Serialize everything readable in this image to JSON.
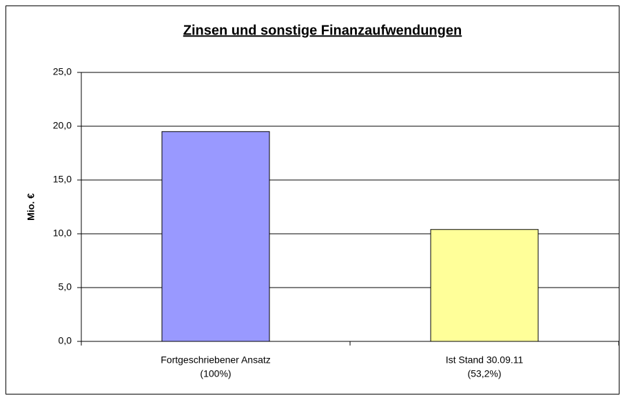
{
  "chart_data": {
    "type": "bar",
    "title": "Zinsen und sonstige Finanzaufwendungen",
    "y_label": "Mio. €",
    "categories": [
      [
        "Fortgeschriebener Ansatz",
        "(100%)"
      ],
      [
        "Ist Stand 30.09.11",
        "(53,2%)"
      ]
    ],
    "values": [
      19.5,
      10.4
    ],
    "colors": [
      "#9999ff",
      "#ffff99"
    ],
    "ylim": [
      0,
      25
    ],
    "yticks": [
      {
        "value": 0,
        "label": "0,0"
      },
      {
        "value": 5,
        "label": "5,0"
      },
      {
        "value": 10,
        "label": "10,0"
      },
      {
        "value": 15,
        "label": "15,0"
      },
      {
        "value": 20,
        "label": "20,0"
      },
      {
        "value": 25,
        "label": "25,0"
      }
    ],
    "grid": true
  }
}
